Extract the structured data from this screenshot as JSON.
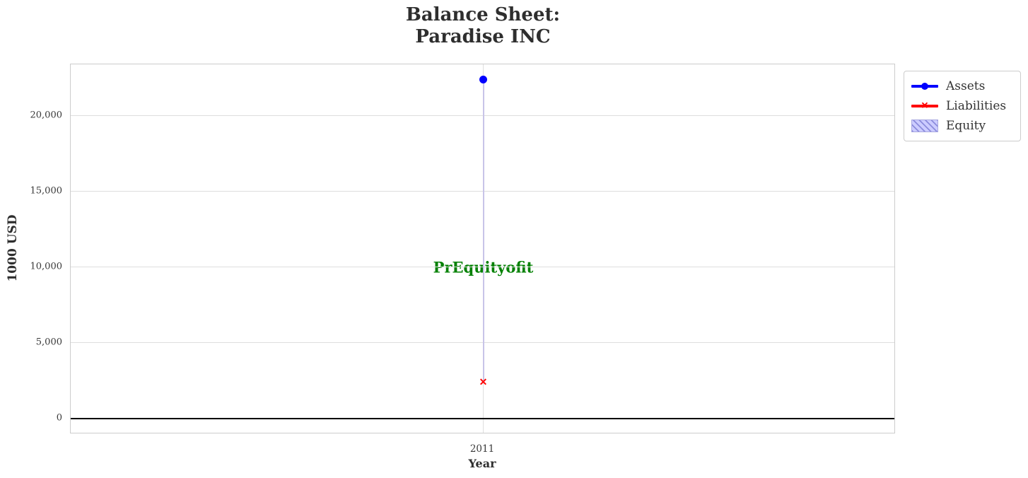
{
  "title": {
    "line1": "Balance Sheet:",
    "line2": "Paradise INC"
  },
  "axes": {
    "xlabel": "Year",
    "ylabel": "1000 USD",
    "x_ticks": [
      "2011"
    ],
    "y_ticks": [
      {
        "value": 0,
        "label": "0"
      },
      {
        "value": 5000,
        "label": "5,000"
      },
      {
        "value": 10000,
        "label": "10,000"
      },
      {
        "value": 15000,
        "label": "15,000"
      },
      {
        "value": 20000,
        "label": "20,000"
      }
    ]
  },
  "annotation": {
    "text": "PrEquityofit",
    "color": "#008000"
  },
  "legend": {
    "items": [
      {
        "label": "Assets",
        "type": "line-circle",
        "color": "#0000ff"
      },
      {
        "label": "Liabilities",
        "type": "line-x",
        "color": "#ff0000"
      },
      {
        "label": "Equity",
        "type": "hatch-patch",
        "fill": "#ccccff",
        "hatch": "#8c8cdc"
      }
    ]
  },
  "chart_data": {
    "type": "line",
    "x": [
      2011
    ],
    "series": [
      {
        "name": "Assets",
        "values": [
          22400
        ],
        "color": "#0000ff",
        "marker": "circle"
      },
      {
        "name": "Liabilities",
        "values": [
          2400
        ],
        "color": "#ff0000",
        "marker": "x"
      },
      {
        "name": "Equity",
        "values": [
          20000
        ],
        "style": "hatched-area",
        "fill": "#ccccff"
      }
    ],
    "title": "Balance Sheet: Paradise INC",
    "xlabel": "Year",
    "ylabel": "1000 USD",
    "ylim": [
      -1030,
      23410
    ],
    "grid": true,
    "legend_position": "upper right, outside axes",
    "zero_line": {
      "value": 0,
      "color": "#000000",
      "width": 2.5
    },
    "x_marker_glyph": "✕"
  }
}
